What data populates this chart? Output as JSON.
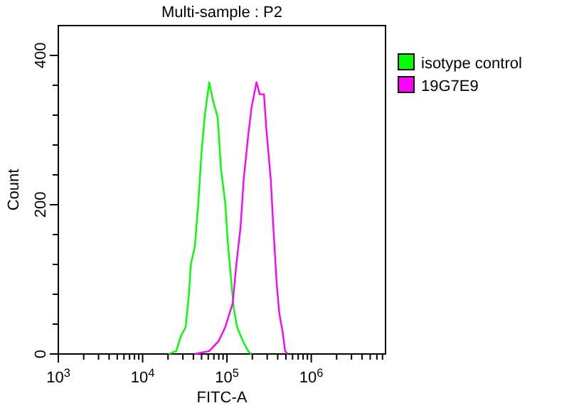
{
  "chart_data": {
    "type": "line",
    "title": "Multi-sample : P2",
    "xlabel": "FITC-A",
    "ylabel": "Count",
    "log": "x",
    "legend": "right",
    "grid": false,
    "marker": "none",
    "line_style": "solid",
    "xlim": [
      1000,
      7600000
    ],
    "ylim": [
      0,
      440
    ],
    "xticks": [
      {
        "value": 1000,
        "label": "10$^{3}$"
      },
      {
        "value": 2000,
        "label": null
      },
      {
        "value": 3000,
        "label": null
      },
      {
        "value": 4000,
        "label": null
      },
      {
        "value": 5000,
        "label": null
      },
      {
        "value": 6000,
        "label": null
      },
      {
        "value": 7000,
        "label": null
      },
      {
        "value": 8000,
        "label": null
      },
      {
        "value": 9000,
        "label": null
      },
      {
        "value": 10000,
        "label": "10$^{4}$"
      },
      {
        "value": 20000,
        "label": null
      },
      {
        "value": 30000,
        "label": null
      },
      {
        "value": 40000,
        "label": null
      },
      {
        "value": 50000,
        "label": null
      },
      {
        "value": 60000,
        "label": null
      },
      {
        "value": 70000,
        "label": null
      },
      {
        "value": 80000,
        "label": null
      },
      {
        "value": 90000,
        "label": null
      },
      {
        "value": 100000,
        "label": "10$^{5}$"
      },
      {
        "value": 200000,
        "label": null
      },
      {
        "value": 300000,
        "label": null
      },
      {
        "value": 400000,
        "label": null
      },
      {
        "value": 500000,
        "label": null
      },
      {
        "value": 600000,
        "label": null
      },
      {
        "value": 700000,
        "label": null
      },
      {
        "value": 800000,
        "label": null
      },
      {
        "value": 900000,
        "label": null
      },
      {
        "value": 1000000,
        "label": "10$^{6}$"
      },
      {
        "value": 2000000,
        "label": null
      },
      {
        "value": 3000000,
        "label": null
      },
      {
        "value": 4000000,
        "label": null
      },
      {
        "value": 5000000,
        "label": null
      },
      {
        "value": 6000000,
        "label": null
      },
      {
        "value": 7000000,
        "label": null
      }
    ],
    "yticks": [
      0,
      {
        "value": 40,
        "label": null
      },
      {
        "value": 80,
        "label": null
      },
      {
        "value": 120,
        "label": null
      },
      {
        "value": 160,
        "label": null
      },
      200,
      {
        "value": 240,
        "label": null
      },
      {
        "value": 280,
        "label": null
      },
      {
        "value": 320,
        "label": null
      },
      {
        "value": 360,
        "label": null
      },
      400
    ],
    "series": [
      {
        "name": "isotype control",
        "color": "#00ff00",
        "x": [
          20400,
          25100,
          28200,
          32400,
          35500,
          37200,
          41700,
          45700,
          50100,
          55000,
          61700,
          67600,
          77600,
          85100,
          95500,
          102000,
          112000,
          120000,
          132000,
          155000,
          178000,
          195000
        ],
        "values": [
          0,
          4,
          23,
          36,
          81,
          119,
          145,
          202,
          272,
          323,
          364,
          342,
          317,
          247,
          202,
          151,
          100,
          62,
          36,
          17,
          4,
          0
        ]
      },
      {
        "name": "19G7E9",
        "color": "#ff00ff",
        "x": [
          41700,
          61700,
          79400,
          95500,
          117000,
          129000,
          145000,
          158000,
          178000,
          195000,
          224000,
          245000,
          275000,
          295000,
          331000,
          355000,
          389000,
          417000,
          457000,
          490000,
          525000
        ],
        "values": [
          0,
          4,
          17,
          36,
          68,
          119,
          170,
          234,
          291,
          329,
          364,
          348,
          348,
          298,
          234,
          170,
          94,
          55,
          30,
          4,
          0
        ]
      }
    ]
  }
}
